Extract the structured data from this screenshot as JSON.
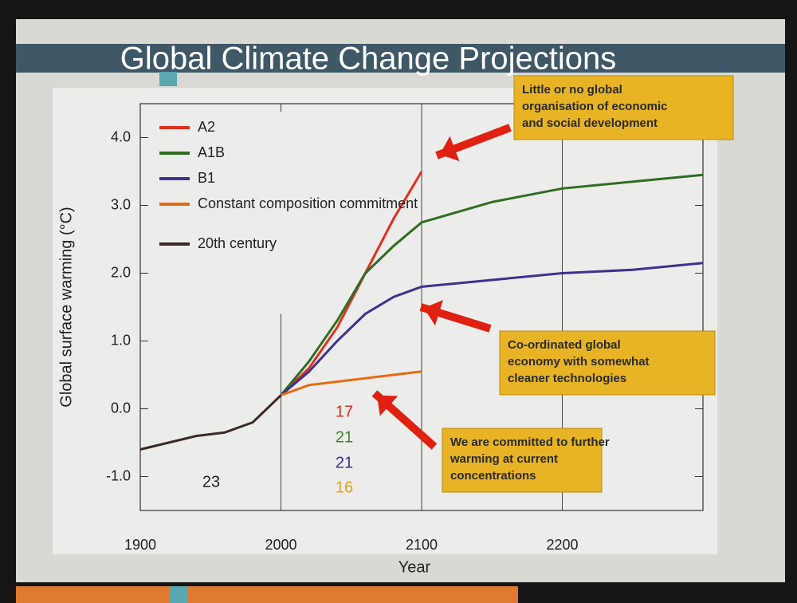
{
  "chart_data": {
    "type": "line",
    "title": "Global Climate Change Projections",
    "x_label": "Year",
    "y_label": "Global surface warming (°C)",
    "x": [
      1900,
      1920,
      1940,
      1960,
      1980,
      2000,
      2020,
      2040,
      2060,
      2080,
      2100,
      2150,
      2200,
      2250,
      2300
    ],
    "series": [
      {
        "name": "A2",
        "color": "#e03020",
        "values": [
          null,
          null,
          null,
          null,
          null,
          0.2,
          0.6,
          1.2,
          2.0,
          2.8,
          3.5,
          null,
          null,
          null,
          null
        ]
      },
      {
        "name": "A1B",
        "color": "#2e6e20",
        "values": [
          null,
          null,
          null,
          null,
          null,
          0.2,
          0.7,
          1.3,
          2.0,
          2.4,
          2.75,
          3.05,
          3.25,
          3.35,
          3.45
        ]
      },
      {
        "name": "B1",
        "color": "#403090",
        "values": [
          null,
          null,
          null,
          null,
          null,
          0.2,
          0.55,
          1.0,
          1.4,
          1.65,
          1.8,
          1.9,
          2.0,
          2.05,
          2.15
        ]
      },
      {
        "name": "Constant composition commitment",
        "color": "#e86a10",
        "values": [
          null,
          null,
          null,
          null,
          null,
          0.2,
          0.35,
          0.4,
          0.45,
          0.5,
          0.55,
          null,
          null,
          null,
          null
        ]
      },
      {
        "name": "20th century",
        "color": "#3a2a24",
        "values": [
          -0.6,
          -0.5,
          -0.4,
          -0.35,
          -0.2,
          0.2,
          null,
          null,
          null,
          null,
          null,
          null,
          null,
          null,
          null
        ]
      }
    ],
    "xlim": [
      1900,
      2300
    ],
    "xticks": [
      1900,
      2000,
      2100,
      2200
    ],
    "ylim": [
      -1.5,
      4.5
    ],
    "yticks": [
      {
        "value": -1,
        "label": "-1.0"
      },
      {
        "value": 0,
        "label": "0.0"
      },
      {
        "value": 1,
        "label": "1.0"
      },
      {
        "value": 2,
        "label": "2.0"
      },
      {
        "value": 3,
        "label": "3.0"
      },
      {
        "value": 4,
        "label": "4.0"
      }
    ],
    "model_counts": [
      {
        "text": "23",
        "color": "#222222"
      },
      {
        "text": "17",
        "color": "#d83020"
      },
      {
        "text": "21",
        "color": "#3a8a2a"
      },
      {
        "text": "21",
        "color": "#403090"
      },
      {
        "text": "16",
        "color": "#e8a020"
      }
    ],
    "annotations": [
      {
        "lines": [
          "Little or no global",
          "organisation of economic",
          "and social development"
        ]
      },
      {
        "lines": [
          "Co-ordinated global",
          "economy with somewhat",
          "cleaner technologies"
        ]
      },
      {
        "lines": [
          "We are committed to further",
          "warming at current",
          "concentrations"
        ]
      }
    ]
  }
}
